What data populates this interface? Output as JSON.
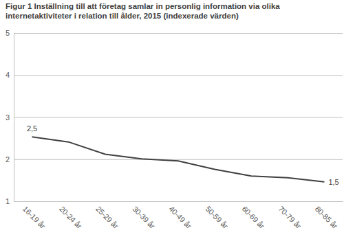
{
  "chart_data": {
    "type": "line",
    "title": "Figur 1 Inställning till att företag samlar in personlig information via olika internetaktiviteter i relation till ålder, 2015 (indexerade värden)",
    "categories": [
      "16-19 år",
      "20-24 år",
      "25-29 år",
      "30-39 år",
      "40-49 år",
      "50-59 år",
      "60-69 år",
      "70-79 år",
      "80-85 år"
    ],
    "values": [
      2.53,
      2.41,
      2.12,
      2.01,
      1.96,
      1.76,
      1.6,
      1.56,
      1.46
    ],
    "value_labels": [
      "2,5",
      null,
      null,
      null,
      null,
      null,
      null,
      null,
      "1,5"
    ],
    "data_labels": true,
    "color": "#404040",
    "ylim": [
      1,
      5
    ],
    "yticks": [
      1,
      2,
      3,
      4,
      5
    ],
    "grid": true
  }
}
